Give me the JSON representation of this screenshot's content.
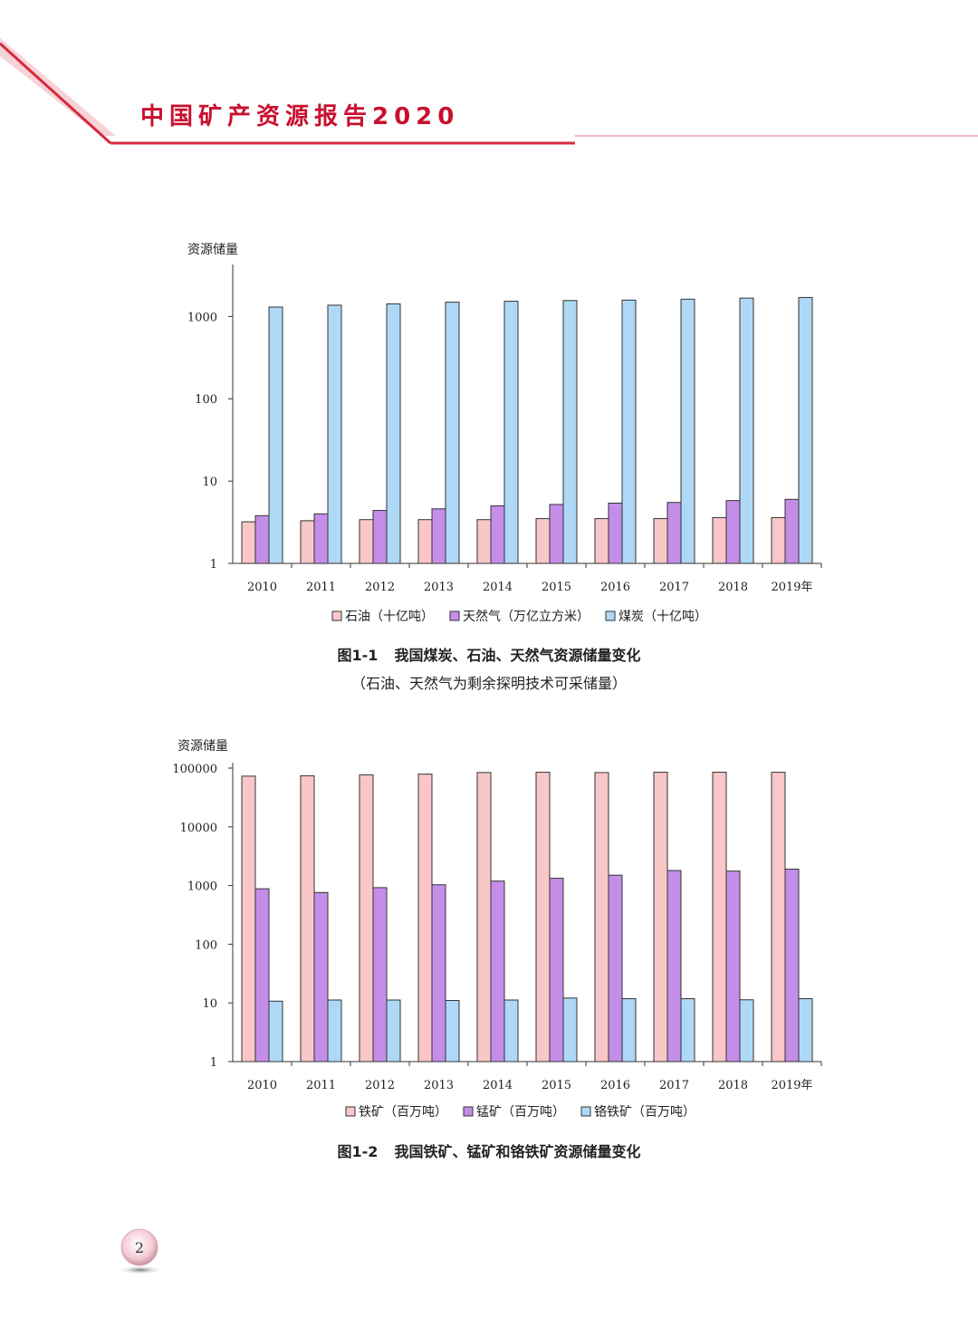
{
  "header": {
    "title": "中国矿产资源报告2020"
  },
  "colors": {
    "accent": "#c8102e",
    "pink_bar": "#f9c7c7",
    "purple_bar": "#c48ee8",
    "blue_bar": "#aed8f5"
  },
  "chart_data": [
    {
      "type": "bar",
      "y_scale": "log",
      "ylabel": "资源储量",
      "ylim": [
        1,
        3000
      ],
      "y_ticks": [
        "1",
        "10",
        "100",
        "1000"
      ],
      "categories": [
        "2010",
        "2011",
        "2012",
        "2013",
        "2014",
        "2015",
        "2016",
        "2017",
        "2018",
        "2019年"
      ],
      "series": [
        {
          "name": "石油（十亿吨）",
          "color": "#f9c7c7",
          "values": [
            3.2,
            3.3,
            3.4,
            3.4,
            3.4,
            3.5,
            3.5,
            3.5,
            3.6,
            3.6
          ]
        },
        {
          "name": "天然气（万亿立方米）",
          "color": "#c48ee8",
          "values": [
            3.8,
            4.0,
            4.4,
            4.6,
            5.0,
            5.2,
            5.4,
            5.5,
            5.8,
            6.0
          ]
        },
        {
          "name": "煤炭（十亿吨）",
          "color": "#aed8f5",
          "values": [
            1300,
            1370,
            1420,
            1490,
            1530,
            1560,
            1580,
            1620,
            1670,
            1700
          ]
        }
      ],
      "caption": {
        "number": "图1-1",
        "title": "我国煤炭、石油、天然气资源储量变化",
        "note": "（石油、天然气为剩余探明技术可采储量）"
      }
    },
    {
      "type": "bar",
      "y_scale": "log",
      "ylabel": "资源储量",
      "ylim": [
        1,
        100000
      ],
      "y_ticks": [
        "1",
        "10",
        "100",
        "1000",
        "10000",
        "100000"
      ],
      "categories": [
        "2010",
        "2011",
        "2012",
        "2013",
        "2014",
        "2015",
        "2016",
        "2017",
        "2018",
        "2019年"
      ],
      "series": [
        {
          "name": "铁矿（百万吨）",
          "color": "#f9c7c7",
          "values": [
            73000,
            74000,
            77000,
            79000,
            84000,
            85000,
            84000,
            85000,
            85000,
            85000
          ]
        },
        {
          "name": "锰矿（百万吨）",
          "color": "#c48ee8",
          "values": [
            880,
            760,
            920,
            1030,
            1190,
            1330,
            1500,
            1800,
            1760,
            1900
          ]
        },
        {
          "name": "铬铁矿（百万吨）",
          "color": "#aed8f5",
          "values": [
            10.7,
            11.2,
            11.2,
            11.0,
            11.2,
            12.1,
            11.8,
            11.8,
            11.3,
            11.8
          ]
        }
      ],
      "caption": {
        "number": "图1-2",
        "title": "我国铁矿、锰矿和铬铁矿资源储量变化"
      }
    }
  ],
  "page": {
    "number": "2"
  }
}
